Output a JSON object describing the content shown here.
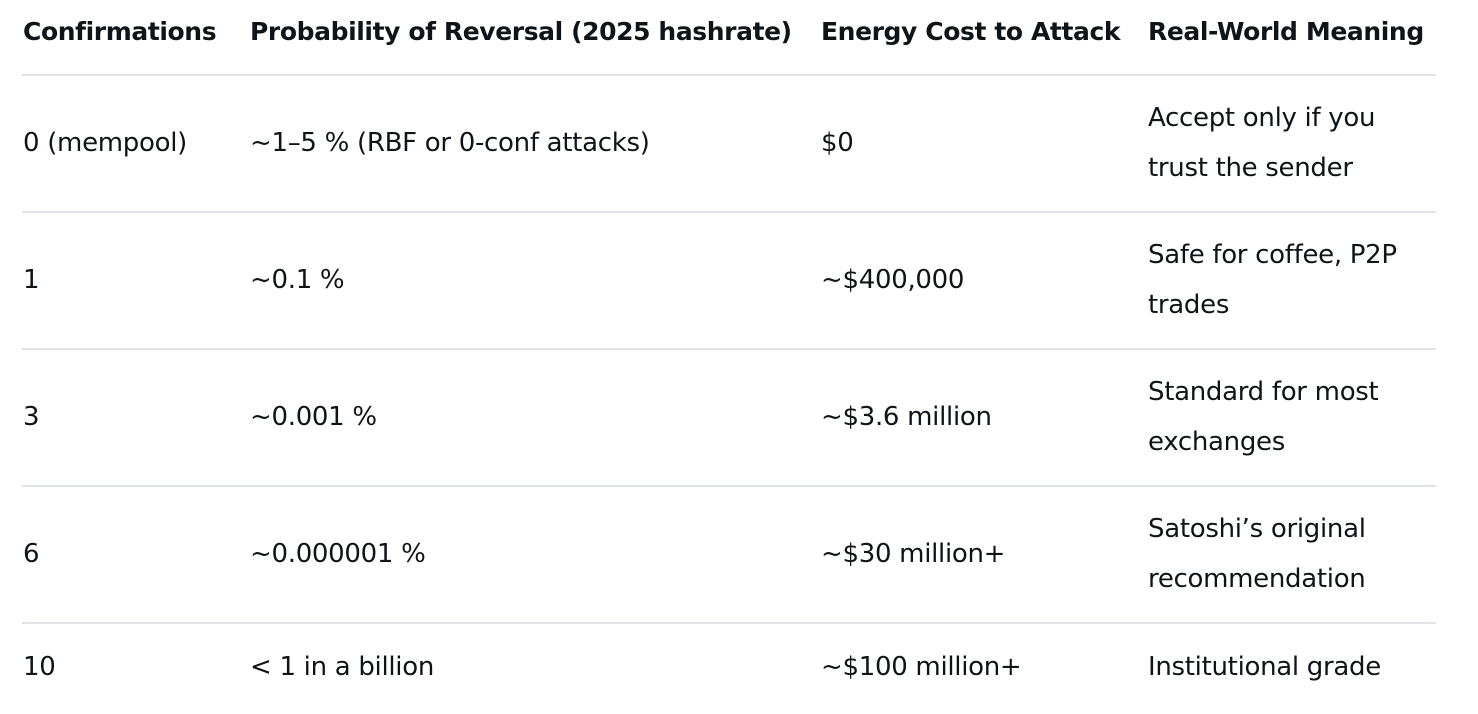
{
  "table": {
    "headers": [
      "Confirmations",
      "Probability of Reversal (2025 hashrate)",
      "Energy Cost to Attack",
      "Real-World Meaning"
    ],
    "rows": [
      {
        "confirmations": "0 (mempool)",
        "probability": "~1–5 % (RBF or 0-conf attacks)",
        "cost": "$0",
        "meaning": "Accept only if you trust the sender"
      },
      {
        "confirmations": "1",
        "probability": "~0.1 %",
        "cost": "~$400,000",
        "meaning": "Safe for coffee, P2P trades"
      },
      {
        "confirmations": "3",
        "probability": "~0.001 %",
        "cost": "~$3.6 million",
        "meaning": "Standard for most exchanges"
      },
      {
        "confirmations": "6",
        "probability": "~0.000001 %",
        "cost": "~$30 million+",
        "meaning": "Satoshi’s original recommendation"
      },
      {
        "confirmations": "10",
        "probability": "< 1 in a billion",
        "cost": "~$100 million+",
        "meaning": "Institutional grade"
      }
    ]
  }
}
